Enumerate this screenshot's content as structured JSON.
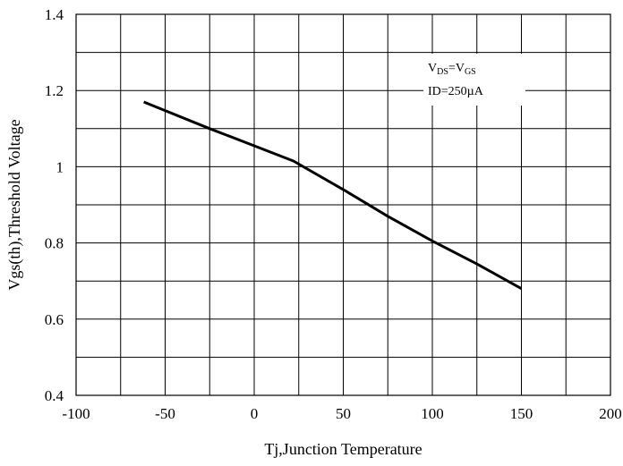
{
  "chart_data": {
    "type": "line",
    "xlabel": "Tj,Junction Temperature",
    "ylabel": "Vgs(th),Threshold Voltage",
    "xlim": [
      -100,
      200
    ],
    "ylim": [
      0.4,
      1.4
    ],
    "x_ticks": [
      -100,
      -50,
      0,
      50,
      100,
      150,
      200
    ],
    "y_ticks": [
      0.4,
      0.6,
      0.8,
      1,
      1.2,
      1.4
    ],
    "x_tick_labels": [
      "-100",
      "-50",
      "0",
      "50",
      "100",
      "150",
      "200"
    ],
    "y_tick_labels": [
      "0.4",
      "0.6",
      "0.8",
      "1",
      "1.2",
      "1.4"
    ],
    "x_minor_step": 25,
    "y_minor_step": 0.1,
    "grid": true,
    "series": [
      {
        "x": [
          -62,
          -25,
          0,
          22,
          50,
          75,
          100,
          125,
          150
        ],
        "values": [
          1.17,
          1.1,
          1.055,
          1.015,
          0.94,
          0.87,
          0.805,
          0.745,
          0.68
        ]
      }
    ],
    "annotations": {
      "line1": {
        "main": "V",
        "sub1": "DS",
        "eq": "=V",
        "sub2": "GS"
      },
      "line2": "ID=250µA"
    }
  }
}
